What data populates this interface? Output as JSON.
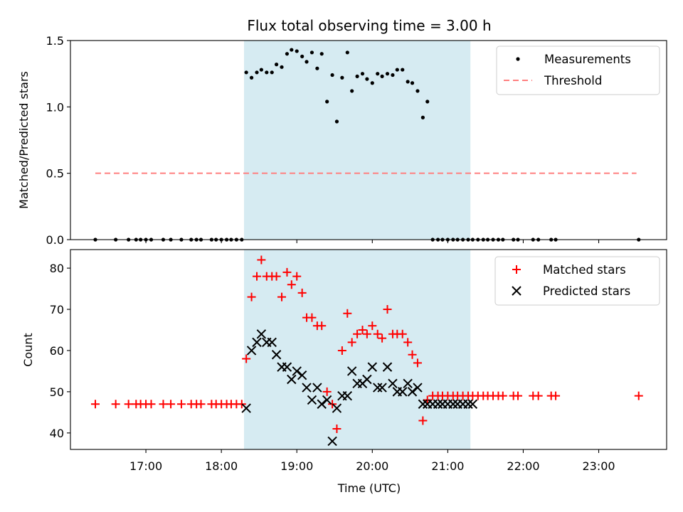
{
  "chart_data": [
    {
      "type": "scatter",
      "title": "Flux total observing time = 3.00 h",
      "ylabel": "Matched/Predicted stars",
      "xlabel": "",
      "ylim": [
        0,
        1.5
      ],
      "yticks": [
        0.0,
        0.5,
        1.0,
        1.5
      ],
      "ytick_labels": [
        "0.0",
        "0.5",
        "1.0",
        "1.5"
      ],
      "shaded_interval": [
        18.3,
        21.3
      ],
      "threshold": {
        "name": "Threshold",
        "value": 0.5,
        "x_range": [
          16.33,
          23.5
        ],
        "color": "#ff7f7f"
      },
      "series": [
        {
          "name": "Measurements",
          "color": "#000000",
          "x": [
            16.33,
            16.6,
            16.77,
            16.87,
            16.93,
            17.0,
            17.07,
            17.23,
            17.33,
            17.47,
            17.6,
            17.67,
            17.73,
            17.87,
            17.93,
            18.0,
            18.07,
            18.13,
            18.2,
            18.27,
            18.33,
            18.4,
            18.47,
            18.53,
            18.6,
            18.67,
            18.73,
            18.8,
            18.87,
            18.93,
            19.0,
            19.07,
            19.13,
            19.2,
            19.27,
            19.33,
            19.4,
            19.47,
            19.53,
            19.6,
            19.67,
            19.73,
            19.8,
            19.87,
            19.93,
            20.0,
            20.07,
            20.13,
            20.2,
            20.27,
            20.33,
            20.4,
            20.47,
            20.53,
            20.6,
            20.67,
            20.73,
            20.8,
            20.87,
            20.93,
            21.0,
            21.07,
            21.13,
            21.2,
            21.27,
            21.33,
            21.4,
            21.47,
            21.53,
            21.6,
            21.67,
            21.73,
            21.87,
            21.93,
            22.13,
            22.2,
            22.37,
            22.43,
            23.53
          ],
          "y": [
            0,
            0,
            0,
            0,
            0,
            0,
            0,
            0,
            0,
            0,
            0,
            0,
            0,
            0,
            0,
            0,
            0,
            0,
            0,
            0,
            1.26,
            1.22,
            1.26,
            1.28,
            1.26,
            1.26,
            1.32,
            1.3,
            1.4,
            1.43,
            1.42,
            1.38,
            1.34,
            1.41,
            1.29,
            1.4,
            1.04,
            1.24,
            0.89,
            1.22,
            1.41,
            1.12,
            1.23,
            1.25,
            1.21,
            1.18,
            1.25,
            1.23,
            1.25,
            1.24,
            1.28,
            1.28,
            1.19,
            1.18,
            1.12,
            0.92,
            1.04,
            0,
            0,
            0,
            0,
            0,
            0,
            0,
            0,
            0,
            0,
            0,
            0,
            0,
            0,
            0,
            0,
            0,
            0,
            0,
            0,
            0,
            0
          ]
        }
      ]
    },
    {
      "type": "scatter",
      "title": "",
      "xlabel": "Time (UTC)",
      "ylabel": "Count",
      "ylim": [
        36,
        84.5
      ],
      "xlim": [
        16.0,
        23.9
      ],
      "yticks": [
        40,
        50,
        60,
        70,
        80
      ],
      "ytick_labels": [
        "40",
        "50",
        "60",
        "70",
        "80"
      ],
      "xticks": [
        17,
        18,
        19,
        20,
        21,
        22,
        23
      ],
      "xtick_labels": [
        "17:00",
        "18:00",
        "19:00",
        "20:00",
        "21:00",
        "22:00",
        "23:00"
      ],
      "shaded_interval": [
        18.3,
        21.3
      ],
      "series": [
        {
          "name": "Matched stars",
          "marker": "plus",
          "color": "#ff0000",
          "x": [
            16.33,
            16.6,
            16.77,
            16.87,
            16.93,
            17.0,
            17.07,
            17.23,
            17.33,
            17.47,
            17.6,
            17.67,
            17.73,
            17.87,
            17.93,
            18.0,
            18.07,
            18.13,
            18.2,
            18.27,
            18.33,
            18.4,
            18.47,
            18.53,
            18.6,
            18.67,
            18.73,
            18.8,
            18.87,
            18.93,
            19.0,
            19.07,
            19.13,
            19.2,
            19.27,
            19.33,
            19.4,
            19.47,
            19.53,
            19.6,
            19.67,
            19.73,
            19.8,
            19.87,
            19.93,
            20.0,
            20.07,
            20.13,
            20.2,
            20.27,
            20.33,
            20.4,
            20.47,
            20.53,
            20.6,
            20.67,
            20.73,
            20.8,
            20.87,
            20.93,
            21.0,
            21.07,
            21.13,
            21.2,
            21.27,
            21.33,
            21.4,
            21.47,
            21.53,
            21.6,
            21.67,
            21.73,
            21.87,
            21.93,
            22.13,
            22.2,
            22.37,
            22.43,
            23.53
          ],
          "y": [
            47,
            47,
            47,
            47,
            47,
            47,
            47,
            47,
            47,
            47,
            47,
            47,
            47,
            47,
            47,
            47,
            47,
            47,
            47,
            47,
            58,
            73,
            78,
            82,
            78,
            78,
            78,
            73,
            79,
            76,
            78,
            74,
            68,
            68,
            66,
            66,
            50,
            47,
            41,
            60,
            69,
            62,
            64,
            65,
            64,
            66,
            64,
            63,
            70,
            64,
            64,
            64,
            62,
            59,
            57,
            43,
            48,
            49,
            49,
            49,
            49,
            49,
            49,
            49,
            49,
            49,
            49,
            49,
            49,
            49,
            49,
            49,
            49,
            49,
            49,
            49,
            49,
            49,
            49
          ]
        },
        {
          "name": "Predicted stars",
          "marker": "x",
          "color": "#000000",
          "x": [
            18.33,
            18.4,
            18.47,
            18.53,
            18.6,
            18.67,
            18.73,
            18.8,
            18.87,
            18.93,
            19.0,
            19.07,
            19.13,
            19.2,
            19.27,
            19.33,
            19.4,
            19.47,
            19.53,
            19.6,
            19.67,
            19.73,
            19.8,
            19.87,
            19.93,
            20.0,
            20.07,
            20.13,
            20.2,
            20.27,
            20.33,
            20.4,
            20.47,
            20.53,
            20.6,
            20.67,
            20.73,
            20.8,
            20.87,
            20.93,
            21.0,
            21.07,
            21.13,
            21.2,
            21.27,
            21.33
          ],
          "y": [
            46,
            60,
            62,
            64,
            62,
            62,
            59,
            56,
            56,
            53,
            55,
            54,
            51,
            48,
            51,
            47,
            48,
            38,
            46,
            49,
            49,
            55,
            52,
            52,
            53,
            56,
            51,
            51,
            56,
            52,
            50,
            50,
            52,
            50,
            51,
            47,
            47,
            47,
            47,
            47,
            47,
            47,
            47,
            47,
            47,
            47
          ]
        }
      ]
    }
  ]
}
